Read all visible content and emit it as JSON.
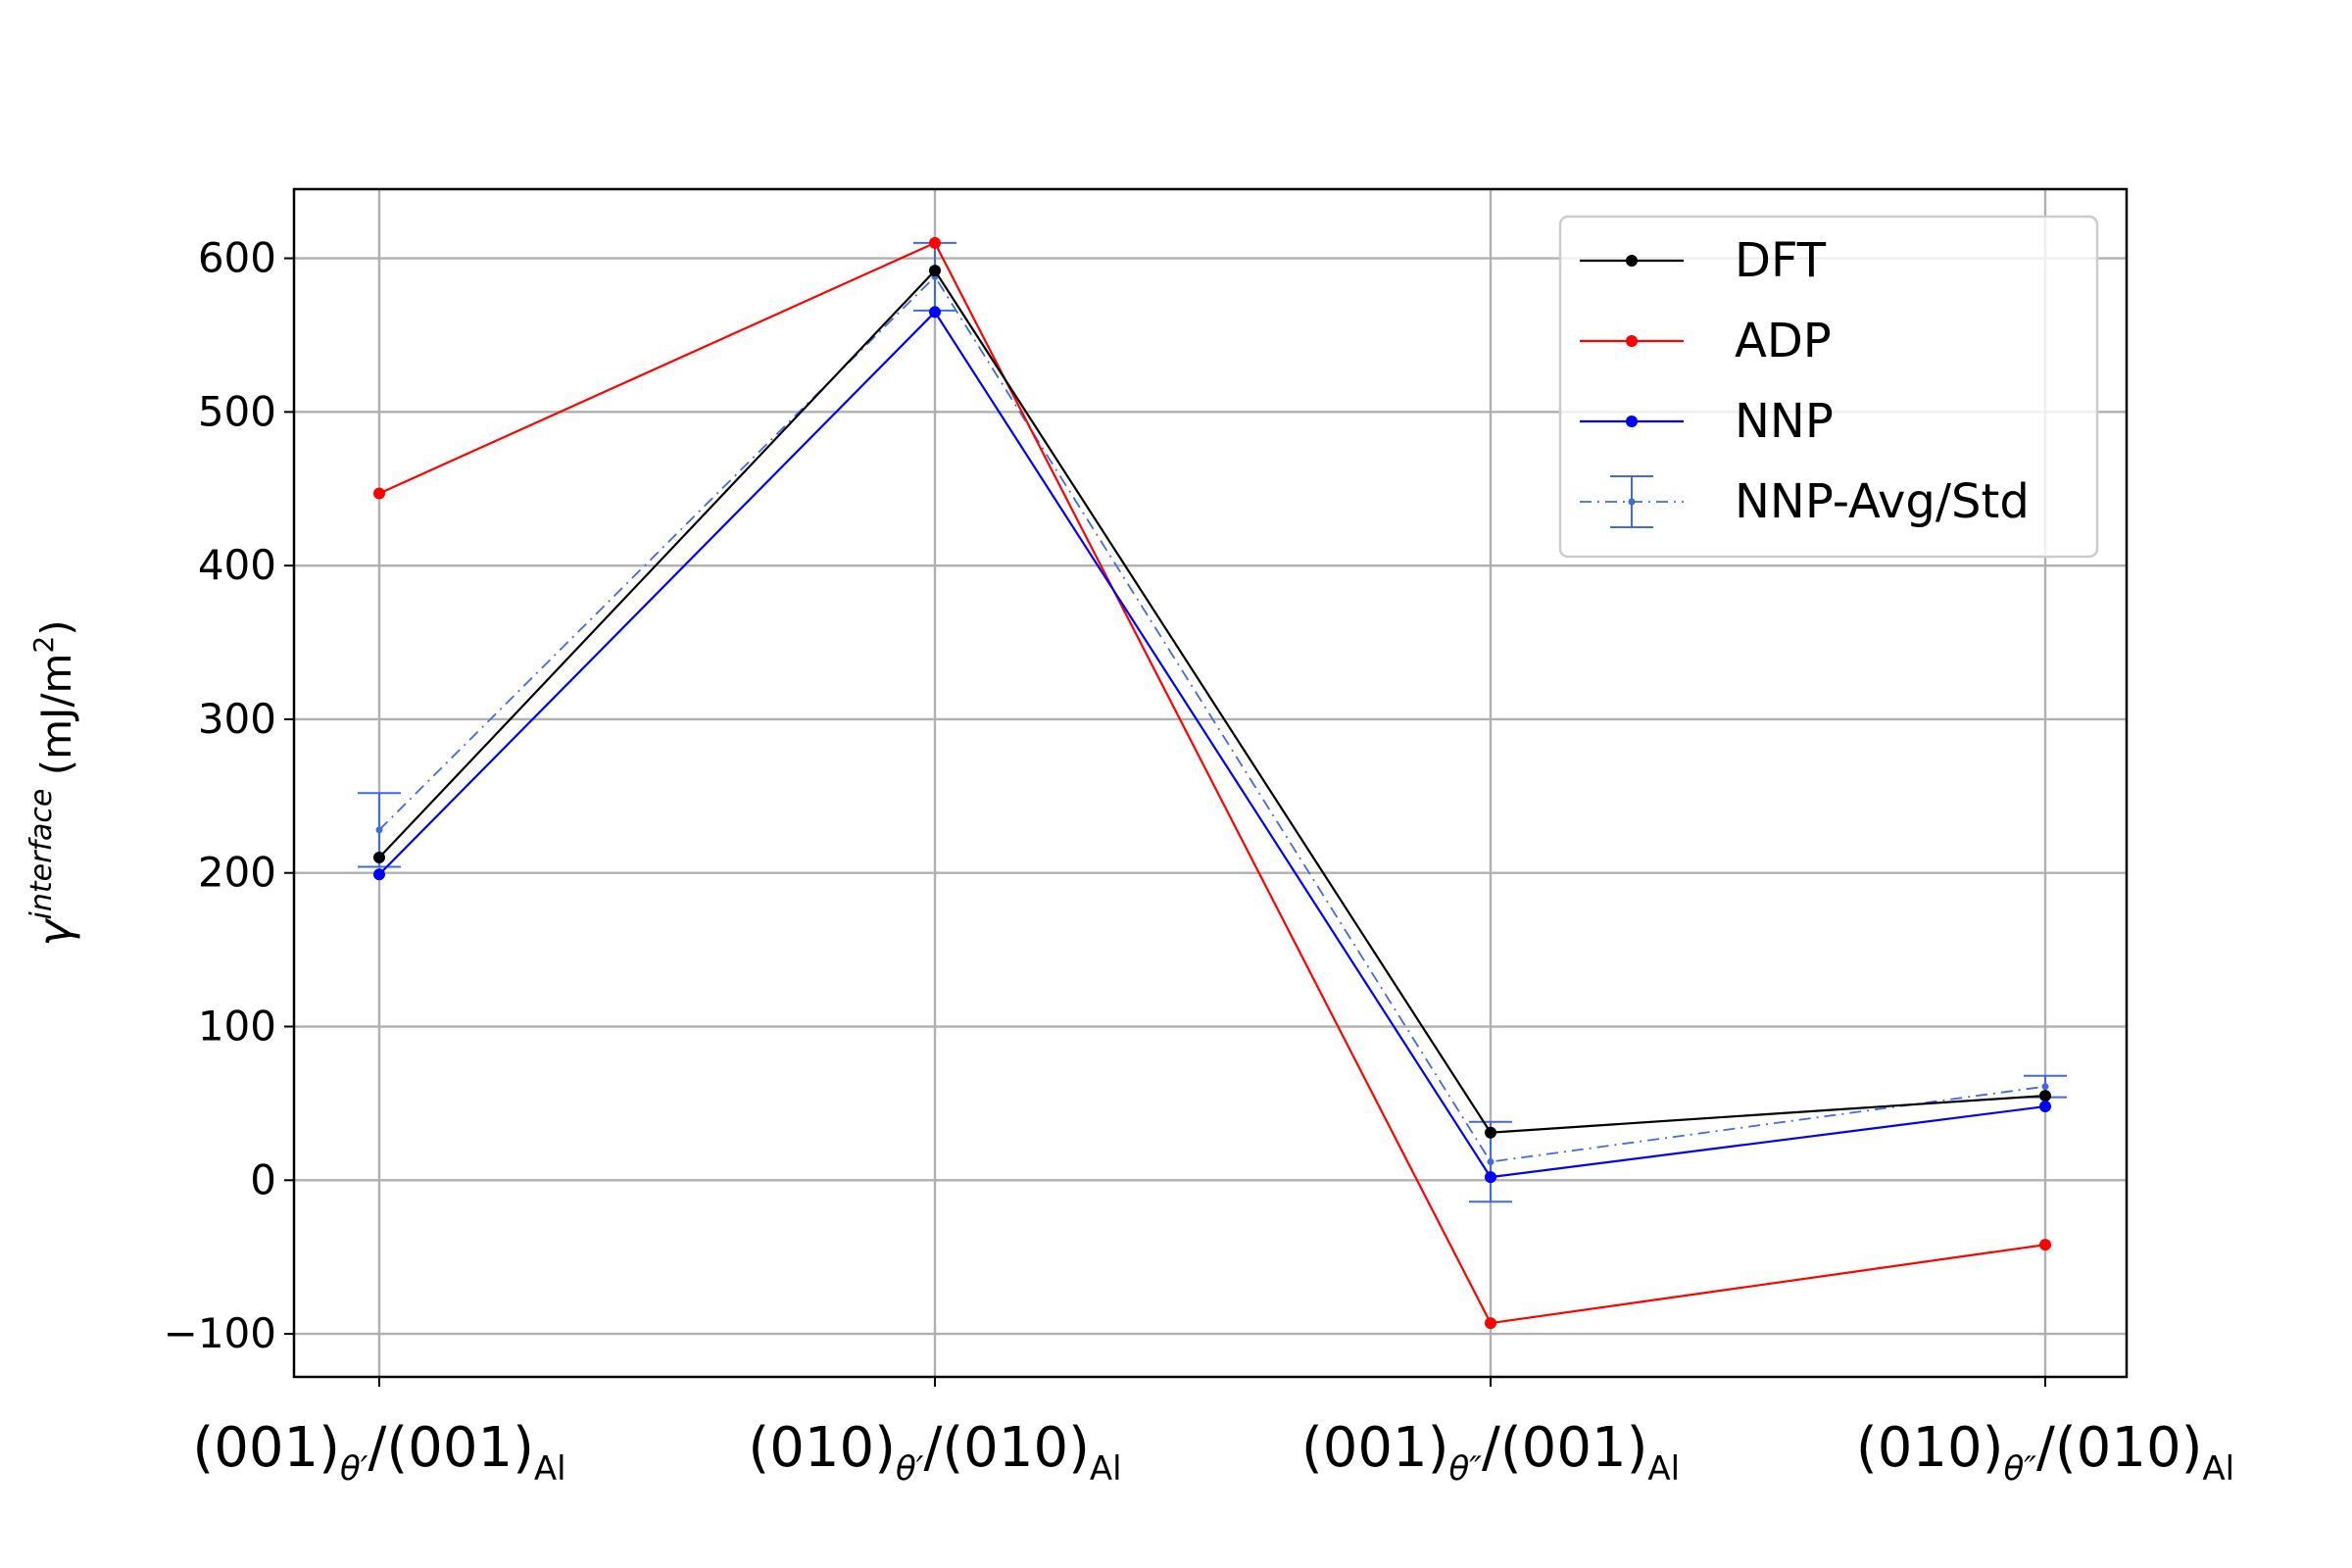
{
  "chart_data": {
    "type": "line",
    "categories": [
      {
        "main1": "(001)",
        "sub1": "θ′",
        "main2": "/(001)",
        "sub2": "Al"
      },
      {
        "main1": "(010)",
        "sub1": "θ′",
        "main2": "/(010)",
        "sub2": "Al"
      },
      {
        "main1": "(001)",
        "sub1": "θ″",
        "main2": "/(001)",
        "sub2": "Al"
      },
      {
        "main1": "(010)",
        "sub1": "θ″",
        "main2": "/(010)",
        "sub2": "Al"
      }
    ],
    "ylabel": {
      "symbol": "γ",
      "sup": "interface",
      "unit_open": " (mJ/m",
      "unit_sup": "2",
      "unit_close": ")"
    },
    "ylim": [
      -128,
      645
    ],
    "yticks": [
      -100,
      0,
      100,
      200,
      300,
      400,
      500,
      600
    ],
    "ytick_labels": [
      "−100",
      "0",
      "100",
      "200",
      "300",
      "400",
      "500",
      "600"
    ],
    "grid": true,
    "legend_position": "top-right",
    "series": [
      {
        "name": "DFT",
        "color": "#000000",
        "style": "solid",
        "values": [
          210,
          592,
          31,
          55
        ]
      },
      {
        "name": "ADP",
        "color": "#ff0000",
        "style": "solid",
        "values": [
          447,
          610,
          -93,
          -42
        ]
      },
      {
        "name": "NNP",
        "color": "#0000ff",
        "style": "solid",
        "values": [
          199,
          565,
          2,
          48
        ]
      },
      {
        "name": "NNP-Avg/Std",
        "color": "#4169e1",
        "style": "dashdot",
        "values": [
          228,
          588,
          12,
          61
        ],
        "errors": [
          24,
          22,
          26,
          7
        ]
      }
    ]
  }
}
